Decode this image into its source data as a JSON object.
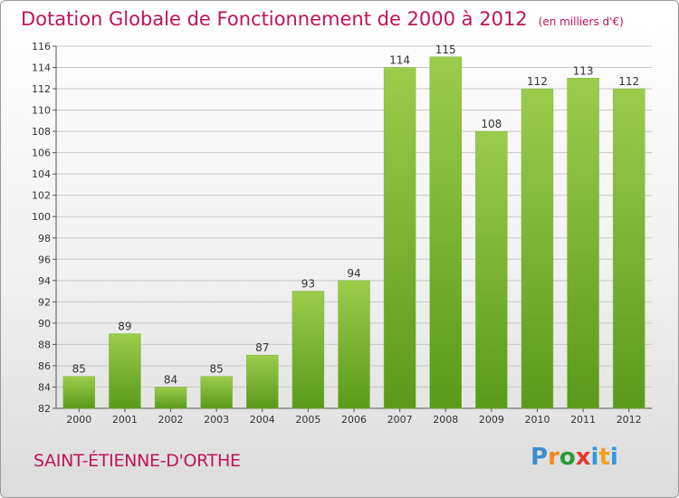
{
  "title": "Dotation Globale de Fonctionnement de 2000 à 2012",
  "subtitle": "(en milliers d'€)",
  "commune": "SAINT-ÉTIENNE-D'ORTHE",
  "logo": "Proxiti",
  "colors": {
    "bar_light": "#9ccc4c",
    "bar_dark": "#5a9a1a",
    "title": "#c0145a"
  },
  "chart_data": {
    "type": "bar",
    "title": "Dotation Globale de Fonctionnement de 2000 à 2012",
    "subtitle": "(en milliers d'€)",
    "categories": [
      "2000",
      "2001",
      "2002",
      "2003",
      "2004",
      "2005",
      "2006",
      "2007",
      "2008",
      "2009",
      "2010",
      "2011",
      "2012"
    ],
    "values": [
      85,
      89,
      84,
      85,
      87,
      93,
      94,
      114,
      115,
      108,
      112,
      113,
      112
    ],
    "ylim": [
      82,
      116
    ],
    "yticks": [
      82,
      84,
      86,
      88,
      90,
      92,
      94,
      96,
      98,
      100,
      102,
      104,
      106,
      108,
      110,
      112,
      114,
      116
    ],
    "grid": true,
    "xlabel": "",
    "ylabel": ""
  }
}
